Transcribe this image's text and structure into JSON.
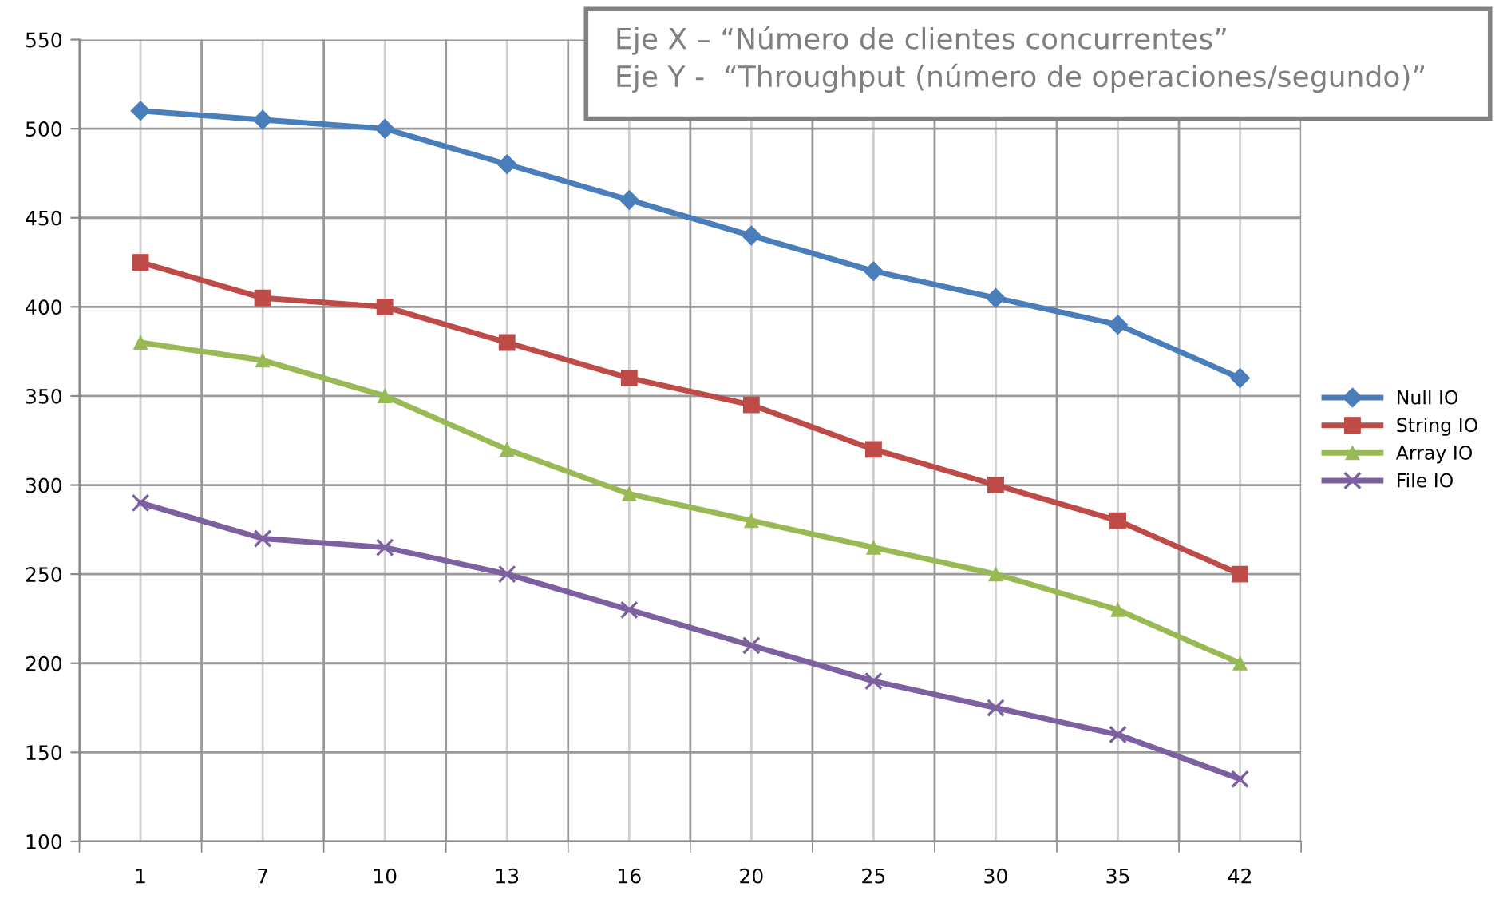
{
  "chart_data": {
    "type": "line",
    "categories": [
      "1",
      "7",
      "10",
      "13",
      "16",
      "20",
      "25",
      "30",
      "35",
      "42"
    ],
    "series": [
      {
        "name": "Null IO",
        "color": "#4a7ebb",
        "marker": "diamond",
        "values": [
          510,
          505,
          500,
          480,
          460,
          440,
          420,
          405,
          390,
          360
        ]
      },
      {
        "name": "String IO",
        "color": "#be4b48",
        "marker": "square",
        "values": [
          425,
          405,
          400,
          380,
          360,
          345,
          320,
          300,
          280,
          250
        ]
      },
      {
        "name": "Array IO",
        "color": "#98b954",
        "marker": "triangle",
        "values": [
          380,
          370,
          350,
          320,
          295,
          280,
          265,
          250,
          230,
          200
        ]
      },
      {
        "name": "File IO",
        "color": "#7d60a0",
        "marker": "cross",
        "values": [
          290,
          270,
          265,
          250,
          230,
          210,
          190,
          175,
          160,
          135
        ]
      }
    ],
    "ylim": [
      100,
      550
    ],
    "yticks": [
      100,
      150,
      200,
      250,
      300,
      350,
      400,
      450,
      500,
      550
    ],
    "grid": true,
    "legend": "right",
    "line_style": "solid",
    "annotations": [
      "Eje X – “Número de clientes concurrentes”",
      "Eje Y -  “Throughput (número de operaciones/segundo)”"
    ]
  }
}
